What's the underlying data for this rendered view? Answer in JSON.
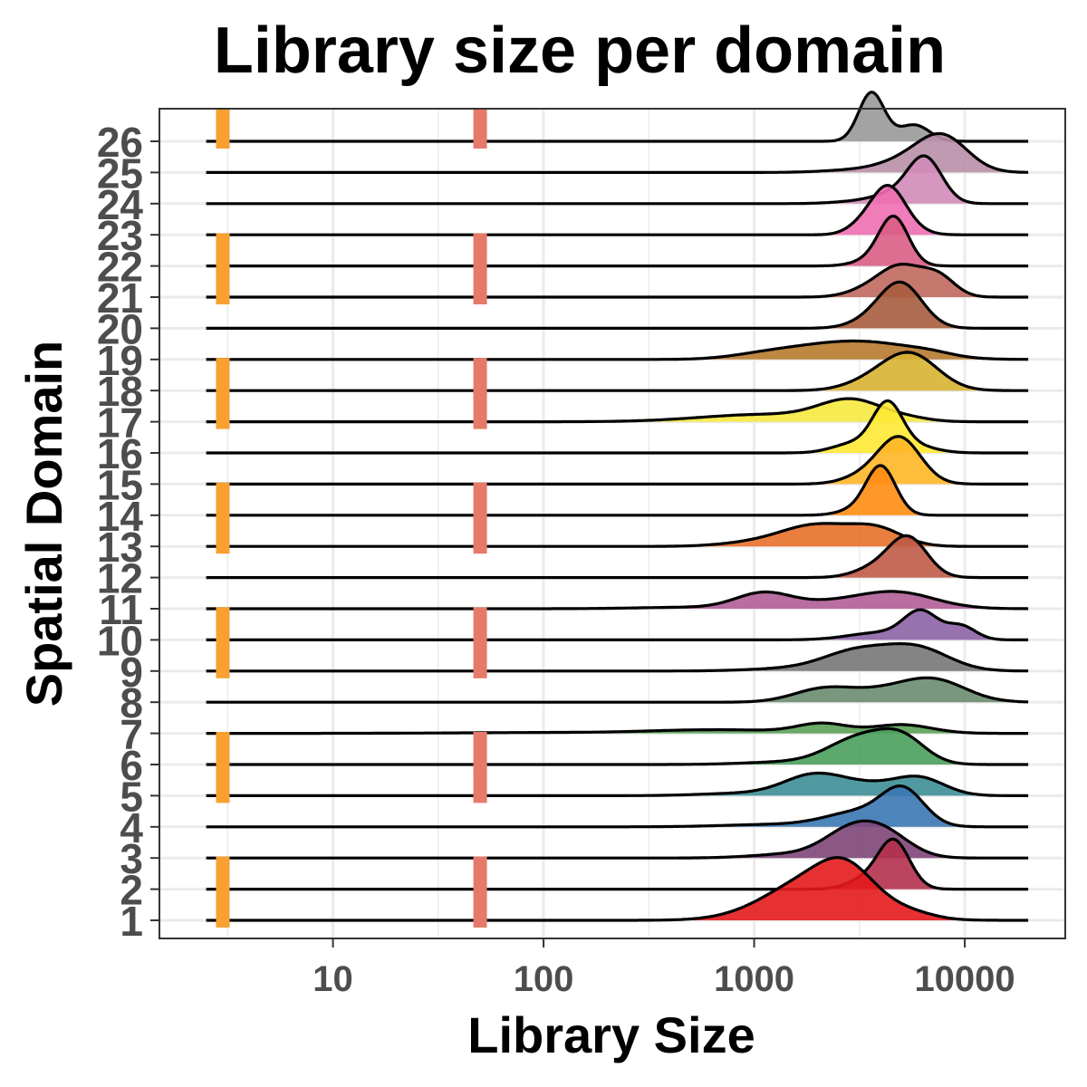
{
  "chart_data": {
    "type": "ridgeline",
    "title": "Library size per domain",
    "xlabel": "Library Size",
    "ylabel": "Spatial Domain",
    "xscale": "log10",
    "xlim": [
      1.5,
      30000
    ],
    "x_ticks": [
      10,
      100,
      1000,
      10000
    ],
    "x_tick_labels": [
      "10",
      "100",
      "1000",
      "10000"
    ],
    "grid": true,
    "curve_range": [
      2.5,
      20000
    ],
    "domains": [
      {
        "label": "1",
        "color": "#E41A1C",
        "peaks": [
          [
            2000,
            0.23,
            0.9
          ],
          [
            2700,
            0.12,
            0.45
          ],
          [
            3900,
            0.15,
            0.1
          ],
          [
            6000,
            0.1,
            0.05
          ]
        ]
      },
      {
        "label": "2",
        "color": "#B4304C",
        "peaks": [
          [
            4600,
            0.075,
            1.0
          ],
          [
            3300,
            0.08,
            0.18
          ]
        ]
      },
      {
        "label": "3",
        "color": "#7E4679",
        "peaks": [
          [
            2900,
            0.13,
            0.55
          ],
          [
            4300,
            0.12,
            0.4
          ],
          [
            1500,
            0.18,
            0.08
          ]
        ]
      },
      {
        "label": "4",
        "color": "#3A78B2",
        "peaks": [
          [
            5100,
            0.1,
            0.7
          ],
          [
            3200,
            0.16,
            0.3
          ],
          [
            1300,
            0.25,
            0.05
          ]
        ]
      },
      {
        "label": "5",
        "color": "#3E8E97",
        "peaks": [
          [
            1900,
            0.14,
            0.4
          ],
          [
            6100,
            0.12,
            0.35
          ],
          [
            3400,
            0.15,
            0.2
          ],
          [
            900,
            0.2,
            0.05
          ]
        ]
      },
      {
        "label": "6",
        "color": "#4A9E5D",
        "peaks": [
          [
            3200,
            0.15,
            0.55
          ],
          [
            5100,
            0.11,
            0.45
          ],
          [
            1400,
            0.2,
            0.05
          ]
        ]
      },
      {
        "label": "7",
        "color": "#5AA155",
        "peaks": [
          [
            2100,
            0.12,
            0.2
          ],
          [
            5000,
            0.14,
            0.18
          ],
          [
            500,
            0.22,
            0.05
          ],
          [
            1000,
            0.18,
            0.04
          ],
          [
            150,
            0.5,
            0.02
          ]
        ]
      },
      {
        "label": "8",
        "color": "#6A8C6F",
        "peaks": [
          [
            2100,
            0.14,
            0.25
          ],
          [
            7300,
            0.15,
            0.4
          ],
          [
            4200,
            0.18,
            0.22
          ]
        ]
      },
      {
        "label": "9",
        "color": "#777777",
        "peaks": [
          [
            3100,
            0.16,
            0.4
          ],
          [
            6000,
            0.15,
            0.45
          ],
          [
            1500,
            0.2,
            0.05
          ]
        ]
      },
      {
        "label": "10",
        "color": "#8C63A6",
        "peaks": [
          [
            6200,
            0.08,
            0.55
          ],
          [
            9600,
            0.07,
            0.28
          ],
          [
            4000,
            0.15,
            0.15
          ]
        ]
      },
      {
        "label": "11",
        "color": "#B05E96",
        "peaks": [
          [
            1100,
            0.13,
            0.3
          ],
          [
            4800,
            0.18,
            0.32
          ],
          [
            2300,
            0.2,
            0.12
          ],
          [
            500,
            0.25,
            0.03
          ]
        ]
      },
      {
        "label": "12",
        "color": "#C05A47",
        "peaks": [
          [
            5400,
            0.09,
            0.8
          ],
          [
            3800,
            0.1,
            0.2
          ]
        ]
      },
      {
        "label": "13",
        "color": "#E7702A",
        "peaks": [
          [
            2000,
            0.18,
            0.45
          ],
          [
            3900,
            0.12,
            0.3
          ],
          [
            900,
            0.15,
            0.05
          ]
        ]
      },
      {
        "label": "14",
        "color": "#FF8D12",
        "peaks": [
          [
            4000,
            0.07,
            1.0
          ],
          [
            3000,
            0.08,
            0.1
          ]
        ]
      },
      {
        "label": "15",
        "color": "#FFB627",
        "peaks": [
          [
            4900,
            0.1,
            0.95
          ],
          [
            3300,
            0.1,
            0.15
          ]
        ]
      },
      {
        "label": "16",
        "color": "#FFE934",
        "peaks": [
          [
            4300,
            0.07,
            0.95
          ],
          [
            3000,
            0.1,
            0.2
          ],
          [
            5700,
            0.1,
            0.15
          ]
        ]
      },
      {
        "label": "17",
        "color": "#F6E940",
        "peaks": [
          [
            2900,
            0.15,
            0.42
          ],
          [
            1100,
            0.3,
            0.15
          ],
          [
            5500,
            0.1,
            0.05
          ]
        ]
      },
      {
        "label": "18",
        "color": "#D8B332",
        "peaks": [
          [
            5500,
            0.13,
            0.75
          ],
          [
            3500,
            0.12,
            0.15
          ]
        ]
      },
      {
        "label": "19",
        "color": "#B77A2E",
        "peaks": [
          [
            2300,
            0.22,
            0.28
          ],
          [
            4500,
            0.2,
            0.2
          ],
          [
            1100,
            0.16,
            0.08
          ],
          [
            7000,
            0.1,
            0.05
          ]
        ]
      },
      {
        "label": "20",
        "color": "#A75C3D",
        "peaks": [
          [
            5000,
            0.1,
            0.9
          ],
          [
            3600,
            0.1,
            0.15
          ]
        ]
      },
      {
        "label": "21",
        "color": "#C1695E",
        "peaks": [
          [
            5000,
            0.1,
            0.6
          ],
          [
            7500,
            0.08,
            0.4
          ],
          [
            3500,
            0.1,
            0.15
          ]
        ]
      },
      {
        "label": "22",
        "color": "#D95D85",
        "peaks": [
          [
            4600,
            0.07,
            1.0
          ],
          [
            3500,
            0.08,
            0.1
          ]
        ]
      },
      {
        "label": "23",
        "color": "#EF6EB2",
        "peaks": [
          [
            4300,
            0.08,
            0.95
          ],
          [
            3200,
            0.07,
            0.15
          ],
          [
            5400,
            0.08,
            0.1
          ]
        ]
      },
      {
        "label": "24",
        "color": "#D18BB8",
        "peaks": [
          [
            6500,
            0.08,
            0.9
          ],
          [
            4800,
            0.1,
            0.2
          ],
          [
            3200,
            0.12,
            0.05
          ]
        ]
      },
      {
        "label": "25",
        "color": "#B88FA8",
        "peaks": [
          [
            7800,
            0.12,
            0.75
          ],
          [
            5000,
            0.12,
            0.18
          ],
          [
            3000,
            0.15,
            0.05
          ]
        ]
      },
      {
        "label": "26",
        "color": "#999999",
        "peaks": [
          [
            3600,
            0.06,
            1.0
          ],
          [
            5800,
            0.07,
            0.33
          ],
          [
            4500,
            0.06,
            0.05
          ]
        ]
      }
    ],
    "markers": [
      {
        "name": "orange-marker",
        "x": 3,
        "color": "#F8A031"
      },
      {
        "name": "salmon-marker",
        "x": 50,
        "color": "#E67A6A"
      }
    ],
    "marker_domains": [
      "1",
      "2",
      "5",
      "6",
      "9",
      "10",
      "13",
      "14",
      "17",
      "18",
      "21",
      "22",
      "26"
    ],
    "ridge_scale": 2.5
  }
}
